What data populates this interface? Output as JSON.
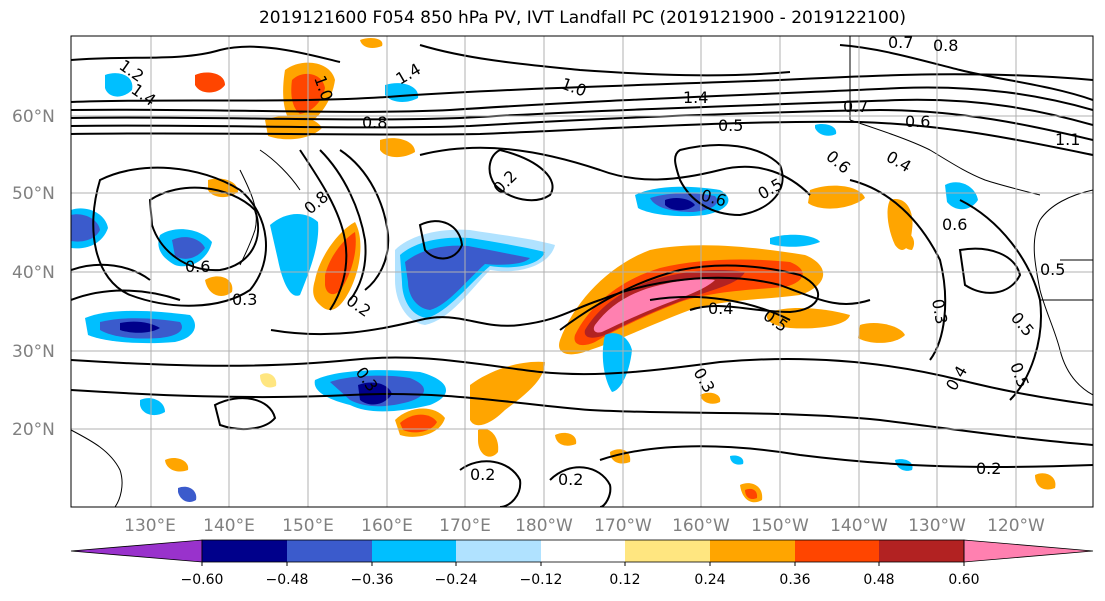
{
  "title": "2019121600 F054 850 hPa PV, IVT Landfall PC (2019121900 - 2019122100)",
  "lat_labels": [
    "60°N",
    "50°N",
    "40°N",
    "30°N",
    "20°N"
  ],
  "lon_labels": [
    "130°E",
    "140°E",
    "150°E",
    "160°E",
    "170°E",
    "180°W",
    "170°W",
    "160°W",
    "150°W",
    "140°W",
    "130°W",
    "120°W"
  ],
  "colorbar": {
    "ticks": [
      "−0.60",
      "−0.48",
      "−0.36",
      "−0.24",
      "−0.12",
      "0.12",
      "0.24",
      "0.36",
      "0.48",
      "0.60"
    ],
    "colors": [
      "#9932cc",
      "#00008b",
      "#3b5bcc",
      "#00bfff",
      "#b0e2ff",
      "#ffffff",
      "#ffe680",
      "#ffa500",
      "#ff4500",
      "#b22222",
      "#ff80b0"
    ]
  },
  "contour_labels": [
    "1.2",
    "1.4",
    "1.0",
    "1.4",
    "1.4",
    "1.0",
    "0.8",
    "0.7",
    "0.8",
    "0.5",
    "0.6",
    "0.7",
    "1.1",
    "0.6",
    "0.6",
    "0.5",
    "0.4",
    "0.2",
    "0.8",
    "0.6",
    "0.6",
    "0.3",
    "0.2",
    "0.5",
    "0.4",
    "0.5",
    "0.3",
    "0.3",
    "0.5",
    "0.2",
    "0.3",
    "0.4",
    "0.5",
    "0.2",
    "0.2"
  ]
}
